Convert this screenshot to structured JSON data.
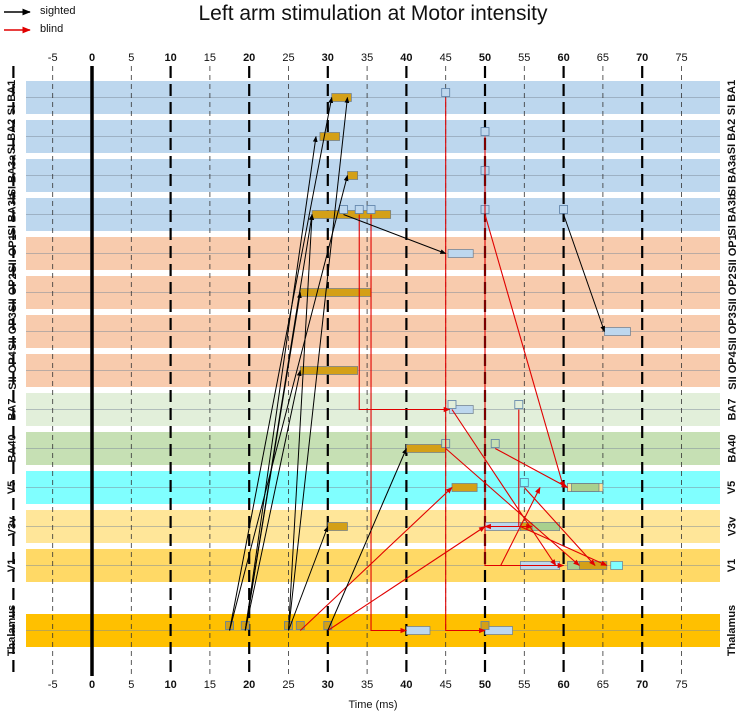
{
  "title": "Left arm stimulation at Motor intensity",
  "legend": [
    {
      "label": "sighted",
      "color": "#000000"
    },
    {
      "label": "blind",
      "color": "#e00000"
    }
  ],
  "xlabel": "Time (ms)",
  "x_ticks": [
    -5,
    0,
    5,
    10,
    15,
    20,
    25,
    30,
    35,
    40,
    45,
    50,
    55,
    60,
    65,
    70,
    75
  ],
  "x_range": [
    -10,
    80
  ],
  "rows": [
    {
      "id": "SI_BA1",
      "group": "SI",
      "sub": "BA1",
      "color": "#bdd7ee"
    },
    {
      "id": "SI_BA2",
      "group": "SI",
      "sub": "BA2",
      "color": "#bdd7ee"
    },
    {
      "id": "SI_BA3a",
      "group": "SI",
      "sub": "BA3a",
      "color": "#bdd7ee"
    },
    {
      "id": "SI_BA3b",
      "group": "SI",
      "sub": "BA3b",
      "color": "#bdd7ee"
    },
    {
      "id": "SII_OP1",
      "group": "SII",
      "sub": "OP1",
      "color": "#f8cbad"
    },
    {
      "id": "SII_OP2",
      "group": "SII",
      "sub": "OP2",
      "color": "#f8cbad"
    },
    {
      "id": "SII_OP3",
      "group": "SII",
      "sub": "OP3",
      "color": "#f8cbad"
    },
    {
      "id": "SII_OP4",
      "group": "SII",
      "sub": "OP4",
      "color": "#f8cbad"
    },
    {
      "id": "BA7",
      "group": "",
      "sub": "BA7",
      "color": "#e2efda"
    },
    {
      "id": "BA40",
      "group": "",
      "sub": "BA40",
      "color": "#c6e0b4"
    },
    {
      "id": "V5",
      "group": "",
      "sub": "V5",
      "color": "#80ffff"
    },
    {
      "id": "V3v",
      "group": "",
      "sub": "V3v",
      "color": "#ffe699"
    },
    {
      "id": "V1",
      "group": "",
      "sub": "V1",
      "color": "#ffd966"
    },
    {
      "id": "Thalamus",
      "group": "",
      "sub": "Thalamus",
      "color": "#ffc000"
    }
  ],
  "bars": [
    {
      "row": 0,
      "t0": 30.5,
      "t1": 33.0,
      "color": "#d4a017"
    },
    {
      "row": 1,
      "t0": 29.0,
      "t1": 31.5,
      "color": "#d4a017"
    },
    {
      "row": 2,
      "t0": 32.5,
      "t1": 33.8,
      "color": "#d4a017"
    },
    {
      "row": 3,
      "t0": 28.0,
      "t1": 38.0,
      "color": "#d4a017"
    },
    {
      "row": 4,
      "t0": 45.3,
      "t1": 48.5,
      "color": "#bdd7ee"
    },
    {
      "row": 5,
      "t0": 26.5,
      "t1": 35.5,
      "color": "#d4a017"
    },
    {
      "row": 6,
      "t0": 65.2,
      "t1": 68.5,
      "color": "#bdd7ee"
    },
    {
      "row": 7,
      "t0": 26.5,
      "t1": 33.8,
      "color": "#d4a017"
    },
    {
      "row": 8,
      "t0": 45.5,
      "t1": 48.5,
      "color": "#bdd7ee"
    },
    {
      "row": 9,
      "t0": 40.0,
      "t1": 45.0,
      "color": "#d4a017"
    },
    {
      "row": 10,
      "t0": 45.8,
      "t1": 49.0,
      "color": "#d4a017"
    },
    {
      "row": 10,
      "t0": 60.5,
      "t1": 64.0,
      "color": "#bdd7ee"
    },
    {
      "row": 10,
      "t0": 60.5,
      "t1": 65.0,
      "color": "#ffe699"
    },
    {
      "row": 10,
      "t0": 61.0,
      "t1": 64.5,
      "color": "#a9d08e"
    },
    {
      "row": 11,
      "t0": 30.0,
      "t1": 32.5,
      "color": "#d4a017"
    },
    {
      "row": 11,
      "t0": 50.0,
      "t1": 54.5,
      "color": "#bdd7ee"
    },
    {
      "row": 11,
      "t0": 55.5,
      "t1": 59.5,
      "color": "#a9d08e"
    },
    {
      "row": 11,
      "t0": 54.5,
      "t1": 56.0,
      "color": "#d4a017"
    },
    {
      "row": 12,
      "t0": 54.5,
      "t1": 59.5,
      "color": "#bdd7ee"
    },
    {
      "row": 12,
      "t0": 60.5,
      "t1": 63.5,
      "color": "#a9d08e"
    },
    {
      "row": 12,
      "t0": 62.0,
      "t1": 65.5,
      "color": "#d4a017"
    },
    {
      "row": 12,
      "t0": 66.0,
      "t1": 67.5,
      "color": "#80ffff"
    },
    {
      "row": 13,
      "t0": 40.0,
      "t1": 43.0,
      "color": "#bdd7ee"
    },
    {
      "row": 13,
      "t0": 50.0,
      "t1": 53.5,
      "color": "#bdd7ee"
    }
  ],
  "markers": [
    {
      "row": 0,
      "t": 45,
      "color": "#bdd7ee"
    },
    {
      "row": 1,
      "t": 50,
      "color": "#bdd7ee"
    },
    {
      "row": 2,
      "t": 50,
      "color": "#bdd7ee"
    },
    {
      "row": 3,
      "t": 32,
      "color": "#bdd7ee"
    },
    {
      "row": 3,
      "t": 34,
      "color": "#bdd7ee"
    },
    {
      "row": 3,
      "t": 35.5,
      "color": "#bdd7ee"
    },
    {
      "row": 3,
      "t": 50,
      "color": "#bdd7ee"
    },
    {
      "row": 3,
      "t": 60,
      "color": "#bdd7ee"
    },
    {
      "row": 8,
      "t": 45.8,
      "color": "#e2efda"
    },
    {
      "row": 8,
      "t": 54.3,
      "color": "#e2efda"
    },
    {
      "row": 9,
      "t": 45,
      "color": "#c6e0b4"
    },
    {
      "row": 9,
      "t": 51.3,
      "color": "#c6e0b4"
    },
    {
      "row": 10,
      "t": 55,
      "color": "#80ffff"
    },
    {
      "row": 13,
      "t": 17.5,
      "color": "#d4a017"
    },
    {
      "row": 13,
      "t": 19.5,
      "color": "#d4a017"
    },
    {
      "row": 13,
      "t": 25,
      "color": "#d4a017"
    },
    {
      "row": 13,
      "t": 26.5,
      "color": "#d4a017"
    },
    {
      "row": 13,
      "t": 30,
      "color": "#d4a017"
    },
    {
      "row": 13,
      "t": 50,
      "color": "#d4a017"
    }
  ],
  "arrows_sighted": [
    {
      "t0": 17.5,
      "r0": 13,
      "t1": 30.5,
      "r1": 0
    },
    {
      "t0": 19.5,
      "r0": 13,
      "t1": 28.5,
      "r1": 1
    },
    {
      "t0": 17.5,
      "r0": 13,
      "t1": 32.5,
      "r1": 2
    },
    {
      "t0": 19.5,
      "r0": 13,
      "t1": 28.0,
      "r1": 3
    },
    {
      "t0": 19.5,
      "r0": 13,
      "t1": 26.5,
      "r1": 5
    },
    {
      "t0": 19.5,
      "r0": 13,
      "t1": 26.5,
      "r1": 7
    },
    {
      "t0": 25.0,
      "r0": 13,
      "t1": 28.0,
      "r1": 3
    },
    {
      "t0": 25.0,
      "r0": 13,
      "t1": 30.0,
      "r1": 11
    },
    {
      "t0": 30.0,
      "r0": 13,
      "t1": 40.0,
      "r1": 9
    },
    {
      "t0": 25.0,
      "r0": 13,
      "t1": 32.5,
      "r1": 0
    },
    {
      "t0": 32.0,
      "r0": 3,
      "t1": 45.0,
      "r1": 4
    },
    {
      "t0": 60.0,
      "r0": 3,
      "t1": 65.2,
      "r1": 6
    }
  ],
  "arrows_blind": [
    {
      "pts": [
        [
          45,
          0
        ],
        [
          45,
          13
        ],
        [
          50,
          13
        ]
      ]
    },
    {
      "pts": [
        [
          50,
          1
        ],
        [
          50,
          12
        ],
        [
          60,
          12
        ]
      ]
    },
    {
      "pts": [
        [
          50,
          3
        ],
        [
          60,
          10
        ]
      ]
    },
    {
      "pts": [
        [
          34,
          3
        ],
        [
          34,
          8
        ],
        [
          45.5,
          8
        ]
      ]
    },
    {
      "pts": [
        [
          35.5,
          3
        ],
        [
          35.5,
          13
        ],
        [
          40,
          13
        ]
      ]
    },
    {
      "pts": [
        [
          26.5,
          13
        ],
        [
          45.8,
          10
        ]
      ]
    },
    {
      "pts": [
        [
          30.0,
          13
        ],
        [
          50,
          11
        ]
      ]
    },
    {
      "pts": [
        [
          45.8,
          8
        ],
        [
          59,
          12
        ]
      ]
    },
    {
      "pts": [
        [
          45,
          9
        ],
        [
          62,
          12
        ]
      ]
    },
    {
      "pts": [
        [
          51.3,
          9
        ],
        [
          60.5,
          10
        ]
      ]
    },
    {
      "pts": [
        [
          50,
          11
        ],
        [
          56,
          11
        ]
      ]
    },
    {
      "pts": [
        [
          54.3,
          8
        ],
        [
          54.3,
          11
        ],
        [
          50,
          11
        ]
      ]
    },
    {
      "pts": [
        [
          55,
          10
        ],
        [
          64,
          12
        ]
      ]
    },
    {
      "pts": [
        [
          54.5,
          11
        ],
        [
          65.5,
          12
        ]
      ]
    },
    {
      "pts": [
        [
          52,
          12
        ],
        [
          57,
          10
        ]
      ]
    }
  ]
}
